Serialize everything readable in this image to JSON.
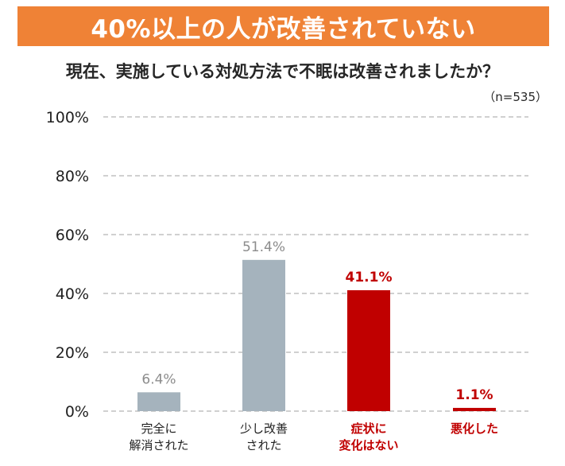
{
  "banner": {
    "title": "40%以上の人が改善されていない"
  },
  "subtitle": "現在、実施している対処方法で不眠は改善されましたか？",
  "sample_note": "（n=535）",
  "colors": {
    "banner": "#ef8236",
    "gray_bar": "#a5b3bd",
    "red_bar": "#c00000",
    "gray_label": "#8c8c8c",
    "red_label": "#c00000",
    "axis_text": "#1f1f1f",
    "grid": "#b5b5b5"
  },
  "chart_data": {
    "type": "bar",
    "title": "",
    "xlabel": "",
    "ylabel": "",
    "ylim": [
      0,
      100
    ],
    "yticks": [
      0,
      20,
      40,
      60,
      80,
      100
    ],
    "ytick_labels": [
      "0%",
      "20%",
      "40%",
      "60%",
      "80%",
      "100%"
    ],
    "grid": true,
    "categories": [
      {
        "lines": [
          "完全に",
          "解消された"
        ],
        "highlight": false
      },
      {
        "lines": [
          "少し改善",
          "された"
        ],
        "highlight": false
      },
      {
        "lines": [
          "症状に",
          "変化はない"
        ],
        "highlight": true
      },
      {
        "lines": [
          "悪化した"
        ],
        "highlight": true
      }
    ],
    "values": [
      6.4,
      51.4,
      41.1,
      1.1
    ],
    "value_labels": [
      "6.4%",
      "51.4%",
      "41.1%",
      "1.1%"
    ]
  }
}
